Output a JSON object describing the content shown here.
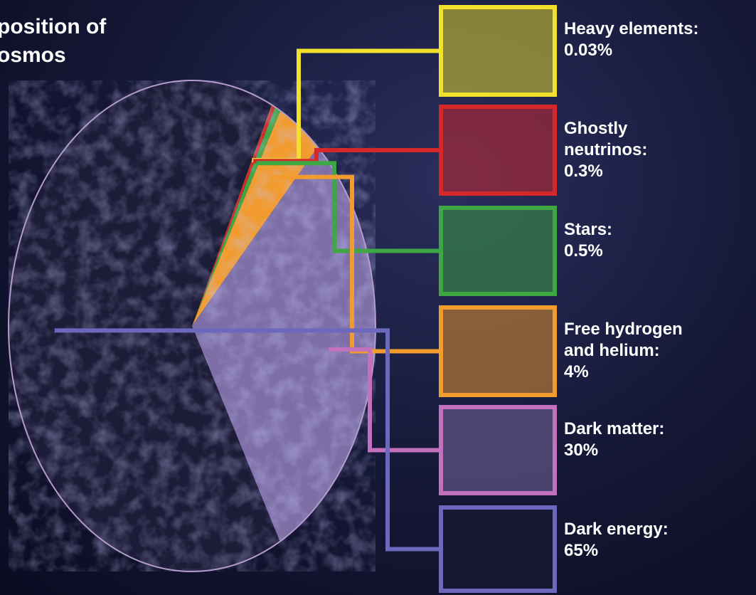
{
  "chart_data": {
    "type": "pie",
    "title_lines": [
      "position of",
      "osmos"
    ],
    "categories": [
      "Heavy elements:",
      "Ghostly neutrinos:",
      "Stars:",
      "Free hydrogen and helium:",
      "Dark matter:",
      "Dark energy:"
    ],
    "values": [
      0.03,
      0.3,
      0.5,
      4,
      30,
      65
    ],
    "value_labels": [
      "0.03%",
      "0.3%",
      "0.5%",
      "4%",
      "30%",
      "65%"
    ],
    "colors": [
      "#f2e12c",
      "#d6282b",
      "#3fa644",
      "#f29b2e",
      "#c471bd",
      "#6c68bd"
    ],
    "slice_colors": [
      "#f2e12c",
      "#d6282b",
      "#3fa644",
      "#f29b2e",
      "#7d6fa6",
      "#1d1c38"
    ]
  }
}
